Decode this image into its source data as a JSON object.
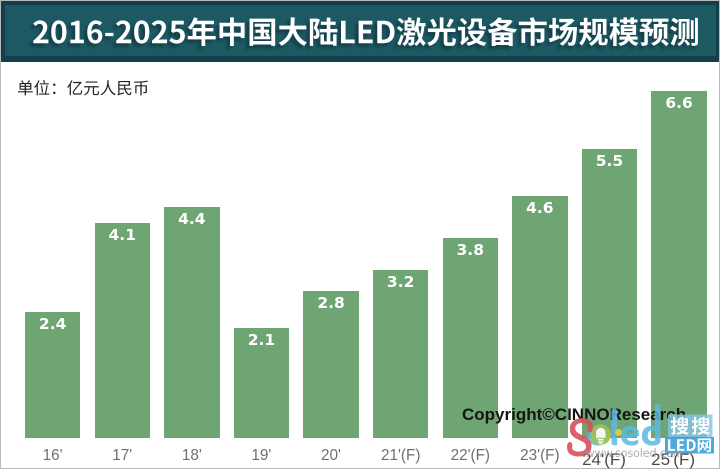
{
  "figure": {
    "border_color": "#b9b9b9",
    "background": "#ffffff"
  },
  "header": {
    "title": "2016-2025年中国大陆LED激光设备市场规模预测",
    "background": "#1d5963",
    "border_color": "#133f4a",
    "text_color": "#ffffff"
  },
  "unit_label": {
    "text": "单位：亿元人民币",
    "color": "#252525"
  },
  "chart_data": {
    "type": "bar",
    "title": "2016-2025年中国大陆LED激光设备市场规模预测",
    "unit": "亿元人民币",
    "categories": [
      "16'",
      "17'",
      "18'",
      "19'",
      "20'",
      "21'(F)",
      "22'(F)",
      "23'(F)",
      "24'(F)",
      "25'(F)"
    ],
    "values": [
      2.4,
      4.1,
      4.4,
      2.1,
      2.8,
      3.2,
      3.8,
      4.6,
      5.5,
      6.6
    ],
    "bar_color": "#6fa473",
    "value_label_color": "#ffffff",
    "category_label_color": "#6f6f6f",
    "ylim": [
      0,
      7
    ],
    "grid": false,
    "legend": false
  },
  "copyright": {
    "text": "Copyright©CINNOResearch",
    "color": "#151515"
  },
  "watermark": {
    "logo_s": "S",
    "logo_oled": "oled",
    "badge_top": "搜搜",
    "badge_bottom": "LED网",
    "url": "www.sosoled.com",
    "colors": {
      "s_red": "#d4525c",
      "oled_blue": "#5eb8e2",
      "badge_green": "#9dc356",
      "dot_yellow": "#e3cd3a",
      "box_light_blue": "#85c6e7",
      "box_blue": "#3a9fd8",
      "url_gray": "#9b9b9b"
    }
  }
}
